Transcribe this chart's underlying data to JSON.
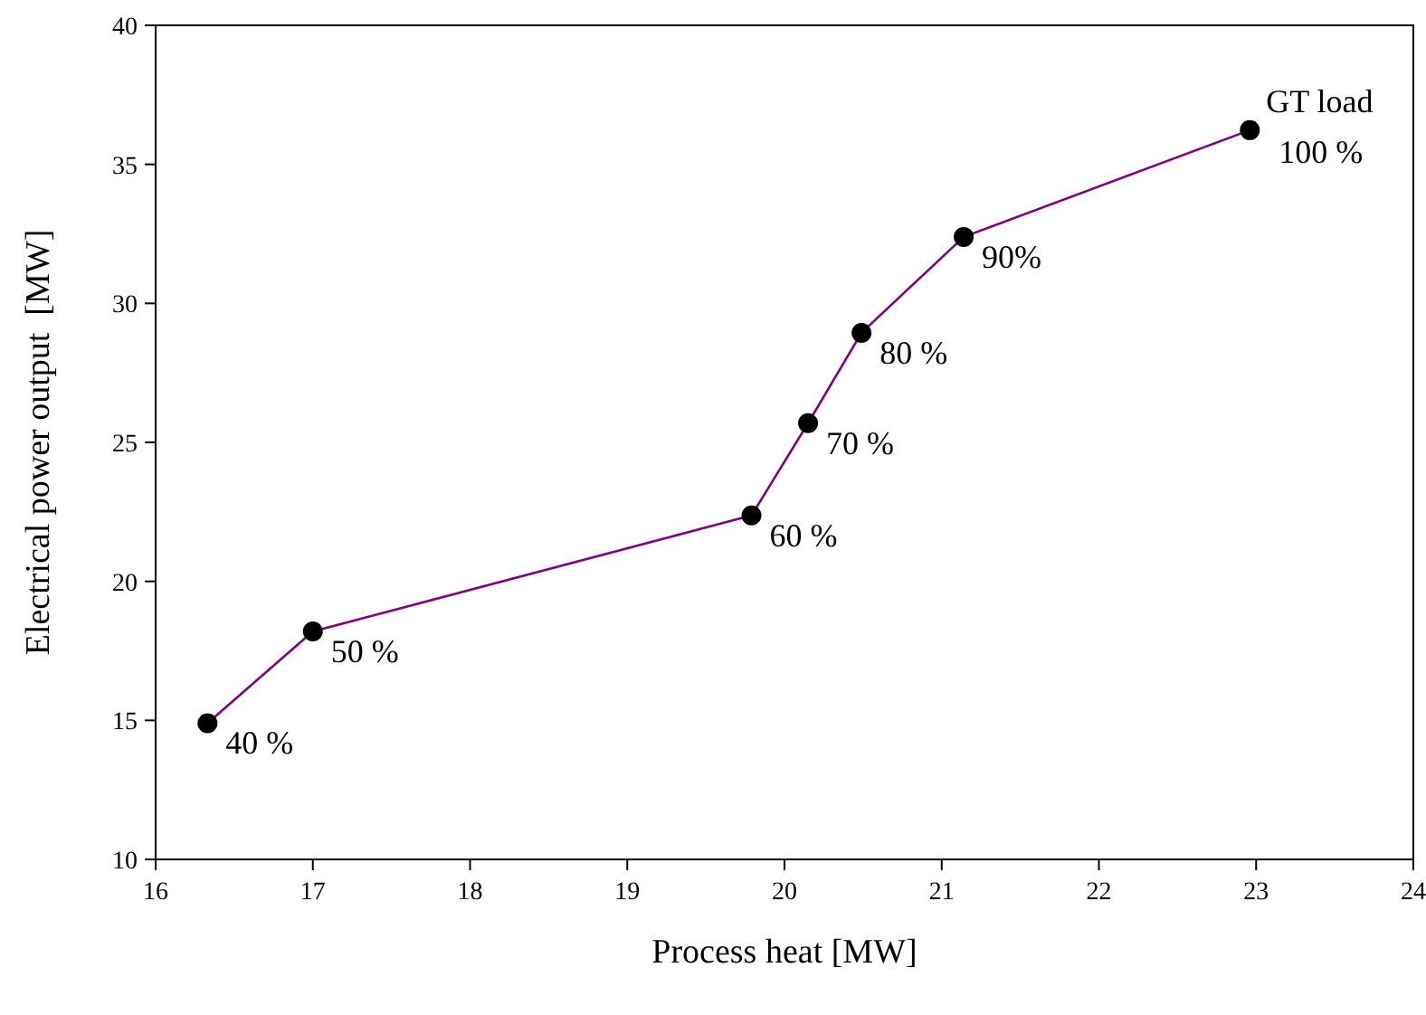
{
  "chart_data": {
    "type": "line",
    "xlabel": "Process heat [MW]",
    "ylabel": "Electrical power output  [MW]",
    "x": [
      16.33,
      17.0,
      19.79,
      20.15,
      20.49,
      21.14,
      22.96
    ],
    "series": [
      {
        "color": "#800080",
        "values": [
          14.9,
          18.2,
          22.37,
          25.69,
          28.94,
          32.39,
          36.23
        ]
      }
    ],
    "xlim": [
      16,
      24
    ],
    "xticks": [
      16,
      17,
      18,
      19,
      20,
      21,
      22,
      23,
      24
    ],
    "ylim": [
      10,
      40
    ],
    "yticks": [
      10,
      15,
      20,
      25,
      30,
      35,
      40
    ],
    "marker": "circle",
    "line_style": "solid",
    "annotations": [
      {
        "text": "40 %",
        "x": 16.33,
        "y": 14.9
      },
      {
        "text": "50 %",
        "x": 17.0,
        "y": 18.2
      },
      {
        "text": "60 %",
        "x": 19.79,
        "y": 22.37
      },
      {
        "text": "70 %",
        "x": 20.15,
        "y": 25.69
      },
      {
        "text": "80 %",
        "x": 20.49,
        "y": 28.94
      },
      {
        "text": "90%",
        "x": 21.14,
        "y": 32.39
      },
      {
        "text": "GT load\n100 %",
        "x": 22.96,
        "y": 36.23
      }
    ]
  }
}
